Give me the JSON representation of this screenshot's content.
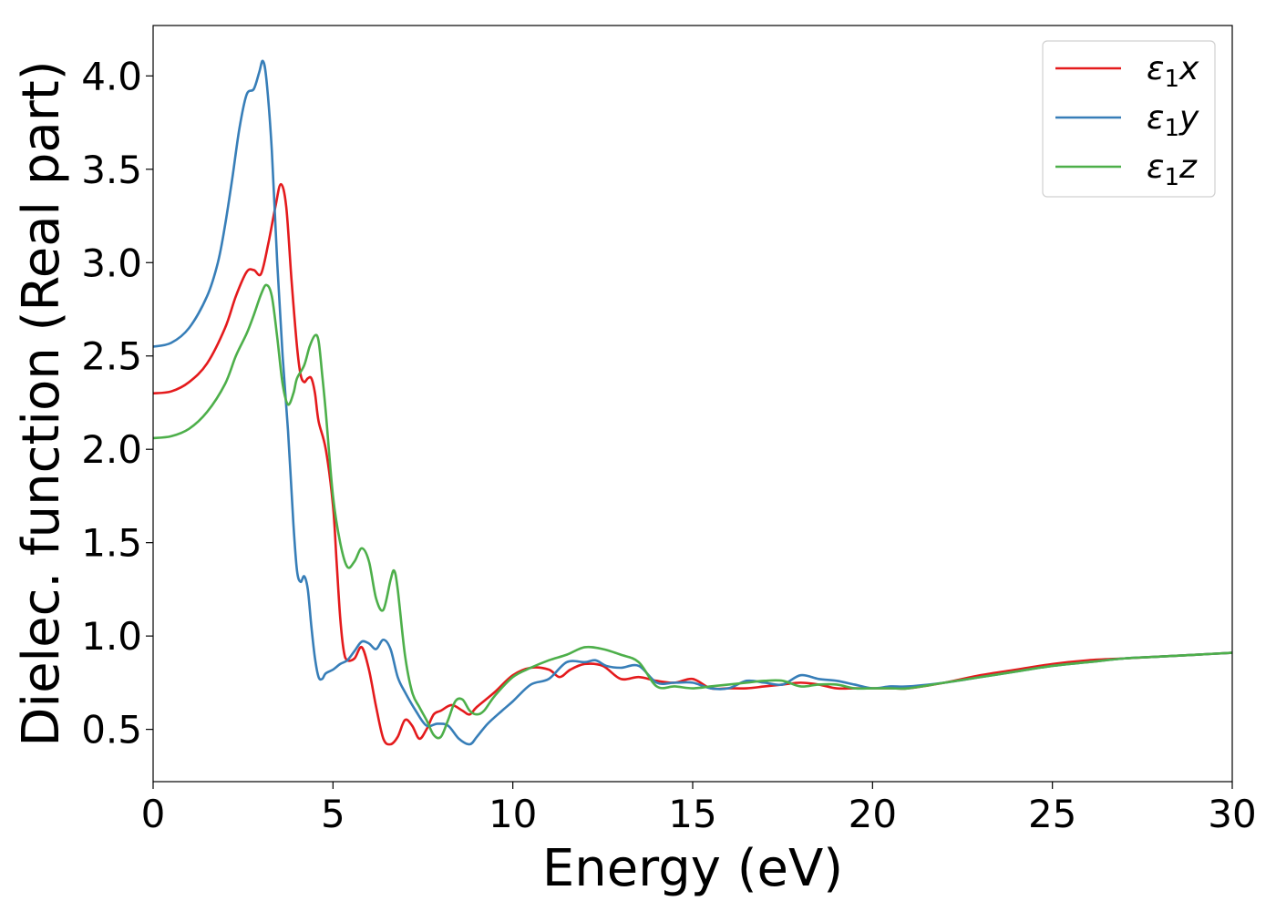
{
  "chart_data": {
    "type": "line",
    "xlabel": "Energy (eV)",
    "ylabel": "Dielec. function (Real part)",
    "xlim": [
      0,
      30
    ],
    "ylim": [
      0.22,
      4.27
    ],
    "xticks": [
      0,
      5,
      10,
      15,
      20,
      25,
      30
    ],
    "xtick_labels": [
      "0",
      "5",
      "10",
      "15",
      "20",
      "25",
      "30"
    ],
    "yticks": [
      0.5,
      1.0,
      1.5,
      2.0,
      2.5,
      3.0,
      3.5,
      4.0
    ],
    "ytick_labels": [
      "0.5",
      "1.0",
      "1.5",
      "2.0",
      "2.5",
      "3.0",
      "3.5",
      "4.0"
    ],
    "grid": false,
    "legend_position": "top-right",
    "series": [
      {
        "name": "ε1x",
        "label_base": "ε",
        "label_sub": "1",
        "label_var": "x",
        "color": "#e41a1c",
        "x": [
          0,
          0.5,
          1.0,
          1.5,
          2.0,
          2.3,
          2.6,
          2.8,
          3.0,
          3.2,
          3.4,
          3.55,
          3.7,
          3.85,
          4.0,
          4.1,
          4.2,
          4.3,
          4.4,
          4.5,
          4.6,
          4.8,
          5.0,
          5.1,
          5.2,
          5.3,
          5.4,
          5.6,
          5.8,
          6.0,
          6.2,
          6.4,
          6.6,
          6.8,
          7.0,
          7.2,
          7.4,
          7.6,
          7.8,
          8.0,
          8.3,
          8.6,
          8.8,
          9.0,
          9.5,
          10.0,
          10.5,
          11.0,
          11.3,
          11.6,
          12.0,
          12.5,
          13.0,
          13.5,
          14.0,
          14.5,
          15.0,
          15.5,
          16.0,
          16.5,
          17.0,
          17.5,
          18.0,
          18.5,
          19.0,
          19.5,
          20.0,
          20.5,
          21.0,
          22.0,
          23.0,
          24.0,
          25.0,
          26.0,
          27.0,
          28.0,
          29.0,
          30.0
        ],
        "y": [
          2.3,
          2.31,
          2.36,
          2.46,
          2.65,
          2.82,
          2.95,
          2.96,
          2.94,
          3.1,
          3.3,
          3.42,
          3.3,
          2.9,
          2.55,
          2.4,
          2.36,
          2.38,
          2.38,
          2.3,
          2.15,
          2.0,
          1.7,
          1.4,
          1.1,
          0.92,
          0.87,
          0.88,
          0.94,
          0.82,
          0.62,
          0.45,
          0.42,
          0.46,
          0.55,
          0.52,
          0.45,
          0.5,
          0.58,
          0.6,
          0.63,
          0.6,
          0.58,
          0.62,
          0.7,
          0.79,
          0.83,
          0.82,
          0.78,
          0.82,
          0.85,
          0.84,
          0.77,
          0.78,
          0.76,
          0.75,
          0.77,
          0.72,
          0.72,
          0.72,
          0.73,
          0.74,
          0.75,
          0.74,
          0.72,
          0.72,
          0.72,
          0.72,
          0.72,
          0.75,
          0.79,
          0.82,
          0.85,
          0.87,
          0.88,
          0.89,
          0.9,
          0.91
        ]
      },
      {
        "name": "ε1y",
        "label_base": "ε",
        "label_sub": "1",
        "label_var": "y",
        "color": "#377eb8",
        "x": [
          0,
          0.5,
          1.0,
          1.5,
          1.8,
          2.0,
          2.2,
          2.4,
          2.6,
          2.8,
          2.95,
          3.05,
          3.15,
          3.3,
          3.45,
          3.6,
          3.75,
          3.9,
          4.0,
          4.1,
          4.2,
          4.3,
          4.4,
          4.5,
          4.6,
          4.7,
          4.8,
          5.0,
          5.2,
          5.4,
          5.6,
          5.8,
          6.0,
          6.2,
          6.4,
          6.6,
          6.8,
          7.0,
          7.3,
          7.6,
          7.9,
          8.2,
          8.5,
          8.8,
          9.0,
          9.3,
          9.7,
          10.0,
          10.5,
          11.0,
          11.5,
          12.0,
          12.3,
          12.6,
          13.0,
          13.5,
          14.0,
          14.5,
          15.0,
          15.5,
          16.0,
          16.5,
          17.0,
          17.5,
          18.0,
          18.5,
          19.0,
          19.5,
          20.0,
          20.5,
          21.0,
          22.0,
          23.0,
          24.0,
          25.0,
          26.0,
          27.0,
          28.0,
          29.0,
          30.0
        ],
        "y": [
          2.55,
          2.57,
          2.65,
          2.82,
          3.0,
          3.2,
          3.45,
          3.72,
          3.9,
          3.93,
          4.02,
          4.08,
          3.98,
          3.6,
          3.0,
          2.5,
          2.1,
          1.6,
          1.35,
          1.29,
          1.32,
          1.25,
          1.05,
          0.88,
          0.78,
          0.77,
          0.8,
          0.82,
          0.85,
          0.87,
          0.92,
          0.97,
          0.96,
          0.93,
          0.98,
          0.93,
          0.78,
          0.7,
          0.6,
          0.52,
          0.53,
          0.52,
          0.45,
          0.42,
          0.46,
          0.53,
          0.6,
          0.65,
          0.74,
          0.77,
          0.86,
          0.86,
          0.87,
          0.84,
          0.83,
          0.84,
          0.75,
          0.75,
          0.75,
          0.72,
          0.72,
          0.76,
          0.75,
          0.74,
          0.79,
          0.77,
          0.76,
          0.74,
          0.72,
          0.73,
          0.73,
          0.75,
          0.78,
          0.81,
          0.84,
          0.86,
          0.88,
          0.89,
          0.9,
          0.91
        ]
      },
      {
        "name": "ε1z",
        "label_base": "ε",
        "label_sub": "1",
        "label_var": "z",
        "color": "#4daf4a",
        "x": [
          0,
          0.5,
          1.0,
          1.5,
          2.0,
          2.3,
          2.6,
          2.8,
          3.0,
          3.15,
          3.3,
          3.45,
          3.6,
          3.75,
          3.9,
          4.0,
          4.2,
          4.35,
          4.5,
          4.6,
          4.7,
          4.8,
          5.0,
          5.2,
          5.4,
          5.6,
          5.8,
          6.0,
          6.2,
          6.4,
          6.6,
          6.7,
          6.8,
          7.0,
          7.2,
          7.4,
          7.6,
          7.8,
          8.0,
          8.2,
          8.4,
          8.6,
          8.8,
          9.0,
          9.2,
          9.5,
          10.0,
          10.5,
          11.0,
          11.5,
          12.0,
          12.5,
          13.0,
          13.5,
          14.0,
          14.5,
          15.0,
          15.5,
          16.0,
          16.5,
          17.0,
          17.5,
          18.0,
          18.5,
          19.0,
          19.5,
          20.0,
          20.5,
          21.0,
          22.0,
          23.0,
          24.0,
          25.0,
          26.0,
          27.0,
          28.0,
          29.0,
          30.0
        ],
        "y": [
          2.06,
          2.07,
          2.11,
          2.2,
          2.35,
          2.5,
          2.62,
          2.72,
          2.83,
          2.88,
          2.82,
          2.6,
          2.35,
          2.24,
          2.3,
          2.38,
          2.45,
          2.55,
          2.61,
          2.58,
          2.4,
          2.2,
          1.75,
          1.5,
          1.37,
          1.4,
          1.47,
          1.4,
          1.2,
          1.14,
          1.3,
          1.35,
          1.25,
          0.9,
          0.7,
          0.62,
          0.55,
          0.47,
          0.46,
          0.55,
          0.65,
          0.66,
          0.6,
          0.58,
          0.6,
          0.68,
          0.78,
          0.83,
          0.87,
          0.9,
          0.94,
          0.93,
          0.9,
          0.86,
          0.73,
          0.73,
          0.72,
          0.73,
          0.74,
          0.75,
          0.76,
          0.76,
          0.73,
          0.74,
          0.74,
          0.72,
          0.72,
          0.72,
          0.72,
          0.75,
          0.78,
          0.81,
          0.84,
          0.86,
          0.88,
          0.89,
          0.9,
          0.91
        ]
      }
    ]
  }
}
